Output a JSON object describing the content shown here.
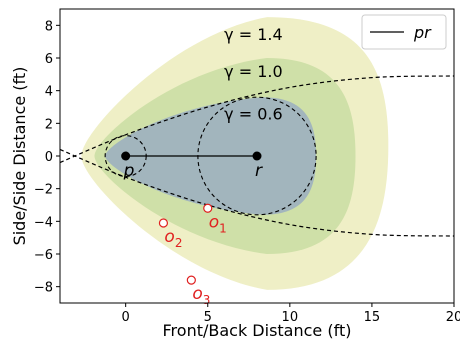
{
  "chart_data": {
    "type": "scatter",
    "title": "",
    "xlabel": "Front/Back Distance (ft)",
    "ylabel": "Side/Side Distance (ft)",
    "xlim": [
      -4,
      20
    ],
    "ylim": [
      -9,
      9
    ],
    "xticks": [
      0,
      5,
      10,
      15,
      20
    ],
    "yticks": [
      -8,
      -6,
      -4,
      -2,
      0,
      2,
      4,
      6,
      8
    ],
    "grid": false,
    "legend": {
      "placement": "top-right",
      "entries": [
        {
          "label": "pr",
          "style": "solid-line"
        }
      ]
    },
    "segment_pr": {
      "p": [
        0,
        0
      ],
      "r": [
        8,
        0
      ]
    },
    "points": [
      {
        "label": "p",
        "x": 0,
        "y": 0,
        "kind": "filled"
      },
      {
        "label": "r",
        "x": 8,
        "y": 0,
        "kind": "filled"
      }
    ],
    "obstacles": [
      {
        "label": "o",
        "sub": "1",
        "x": 5.0,
        "y": -3.2
      },
      {
        "label": "o",
        "sub": "2",
        "x": 2.3,
        "y": -4.1
      },
      {
        "label": "o",
        "sub": "3",
        "x": 4.0,
        "y": -7.6
      }
    ],
    "circles": [
      {
        "name": "circle-p",
        "cx": 0,
        "cy": 0,
        "radius": 1.25
      },
      {
        "name": "circle-r",
        "cx": 8,
        "cy": 0,
        "radius": 3.6
      }
    ],
    "tangent_curves": [
      {
        "name": "upper",
        "points": [
          [
            -4,
            -0.4
          ],
          [
            0,
            1.3
          ],
          [
            5,
            3.0
          ],
          [
            10,
            4.2
          ],
          [
            15,
            4.8
          ],
          [
            20,
            4.9
          ]
        ]
      },
      {
        "name": "lower",
        "points": [
          [
            -4,
            0.4
          ],
          [
            0,
            -1.3
          ],
          [
            5,
            -3.0
          ],
          [
            10,
            -4.2
          ],
          [
            15,
            -4.8
          ],
          [
            20,
            -4.9
          ]
        ]
      }
    ],
    "regions": [
      {
        "gamma_label": "γ = 1.4",
        "color": "#efefc6",
        "left": -2.7,
        "right": 16.0,
        "right_cy": 0.6,
        "right_r": 8.2,
        "top": 8.5,
        "bottom": -8.2
      },
      {
        "gamma_label": "γ = 1.0",
        "color": "#cfe0a8",
        "left": -1.9,
        "right": 14.0,
        "right_cy": 0.0,
        "right_r": 6.0,
        "top": 6.0,
        "bottom": -6.0
      },
      {
        "gamma_label": "γ = 0.6",
        "color": "#a2b5bd",
        "left": -1.25,
        "right": 11.6,
        "right_cy": 0.0,
        "right_r": 3.6,
        "top": 3.6,
        "bottom": -3.6
      }
    ],
    "colors": {
      "obstacle": "#e02020",
      "point": "#000000",
      "axes": "#000000"
    }
  }
}
